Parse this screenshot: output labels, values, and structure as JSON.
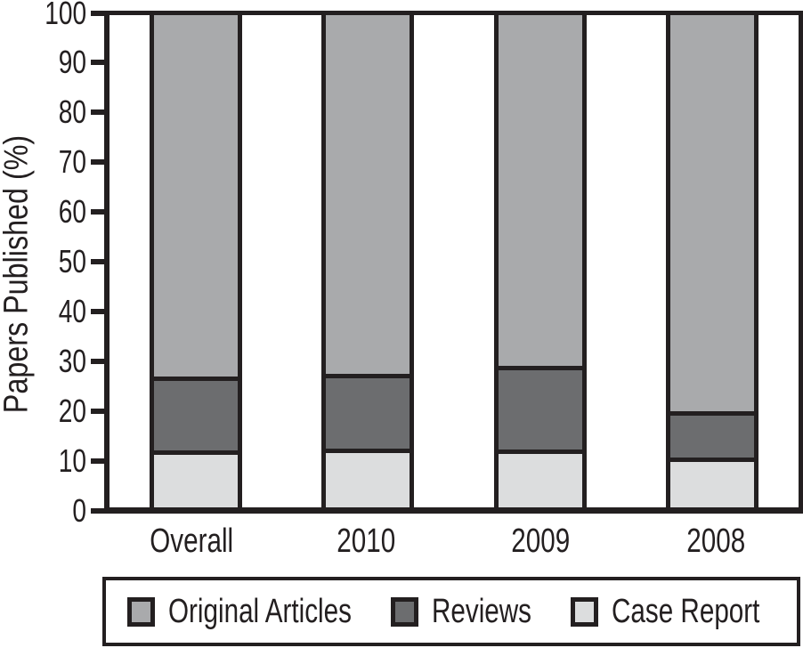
{
  "figure": {
    "background": "#ffffff",
    "line_color": "#231f20",
    "text_color": "#231f20"
  },
  "chart_data": {
    "type": "bar",
    "stacked": true,
    "title": "",
    "xlabel": "",
    "ylabel": "Papers Published (%)",
    "ylim": [
      0,
      100
    ],
    "ytick_step": 10,
    "yticks": [
      "0",
      "10",
      "20",
      "30",
      "40",
      "50",
      "60",
      "70",
      "80",
      "90",
      "100"
    ],
    "categories": [
      "Overall",
      "2010",
      "2009",
      "2008"
    ],
    "series": [
      {
        "name": "Original Articles",
        "color": "#a9aaac",
        "values": [
          74.3,
          73.8,
          72.1,
          81.3
        ]
      },
      {
        "name": "Reviews",
        "color": "#6c6d6f",
        "values": [
          15.1,
          15.2,
          17.0,
          9.4
        ]
      },
      {
        "name": "Case Report",
        "color": "#dcddde",
        "values": [
          10.6,
          11.0,
          10.9,
          9.3
        ]
      }
    ],
    "stack_order_bottom_to_top": [
      "Case Report",
      "Reviews",
      "Original Articles"
    ],
    "legend_position": "bottom",
    "legend_entries": [
      "Original Articles",
      "Reviews",
      "Case Report"
    ],
    "grid": false
  }
}
